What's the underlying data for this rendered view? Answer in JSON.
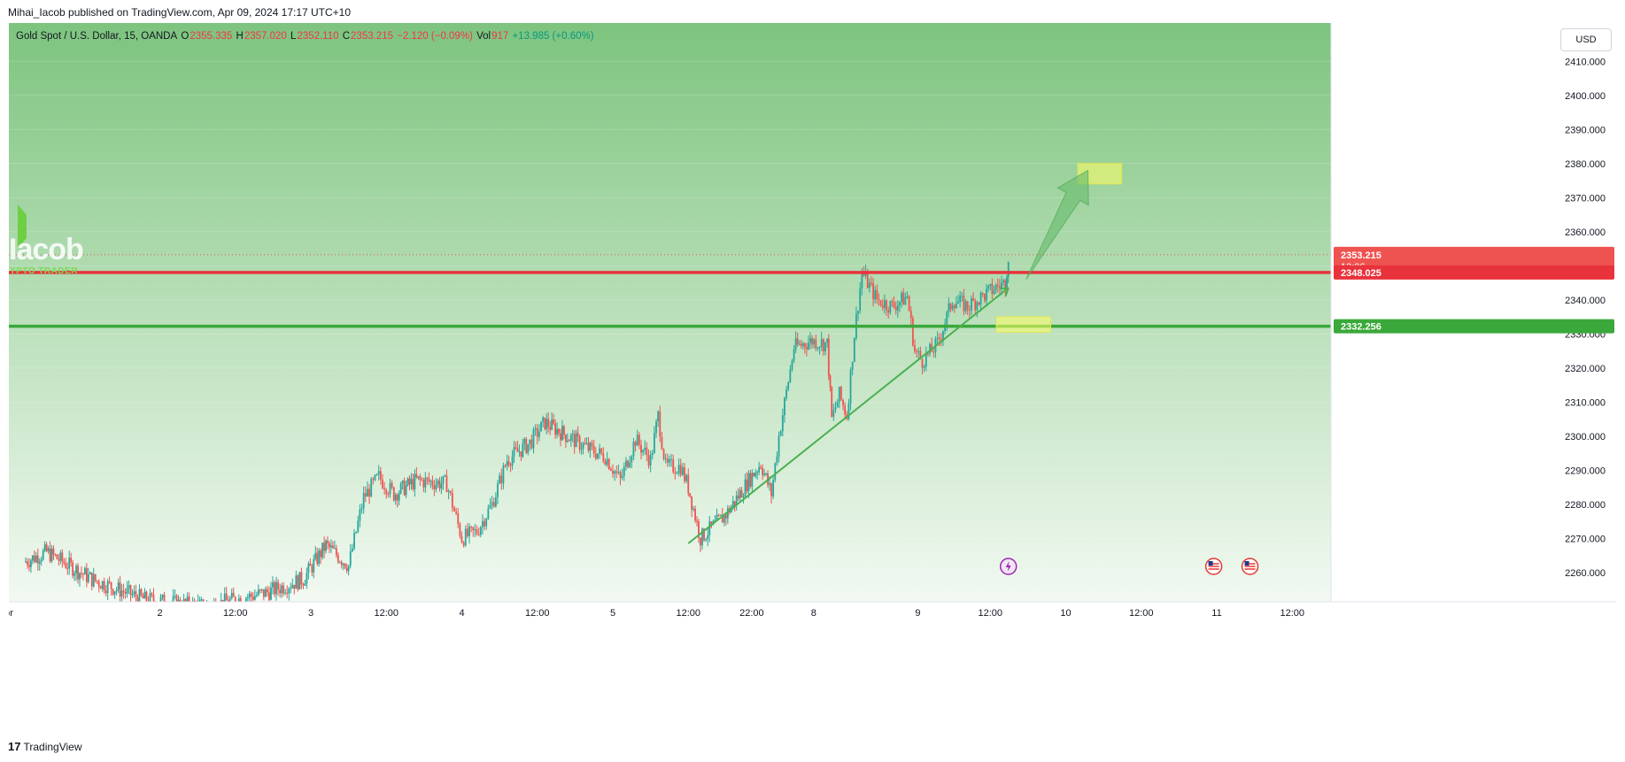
{
  "header": {
    "published": "Mihai_Iacob published on TradingView.com, Apr 09, 2024 17:17 UTC+10"
  },
  "ohlc": {
    "symbol": "Gold Spot / U.S. Dollar, 15, OANDA",
    "o_label": "O",
    "o": "2355.335",
    "h_label": "H",
    "h": "2357.020",
    "l_label": "L",
    "l": "2352.110",
    "c_label": "C",
    "c": "2353.215",
    "change": "−2.120 (−0.09%)",
    "vol_label": "Vol",
    "vol": "917",
    "vol_change": "+13.985 (+0.60%)"
  },
  "currency_button": "USD",
  "watermark": {
    "name": "Iacob",
    "subtitle": "YPTO TRADER"
  },
  "footer": {
    "brand": "TradingView"
  },
  "colors": {
    "up": "#26a69a",
    "down": "#ef5350",
    "resistance": "#e8323c",
    "support": "#3aa83a",
    "trendline": "#4caf50",
    "box": "#ffff66"
  },
  "chart_data": {
    "type": "candlestick",
    "symbol": "XAUUSD",
    "interval": "15",
    "ylim": [
      2255,
      2415
    ],
    "y_ticks": [
      2260,
      2270,
      2280,
      2290,
      2300,
      2310,
      2320,
      2330,
      2340,
      2350,
      2360,
      2370,
      2380,
      2390,
      2400,
      2410
    ],
    "x_ticks": [
      {
        "label": "pr",
        "pos": 0.0
      },
      {
        "label": "2",
        "pos": 1.0
      },
      {
        "label": "12:00",
        "pos": 1.5
      },
      {
        "label": "3",
        "pos": 2.0
      },
      {
        "label": "12:00",
        "pos": 2.5
      },
      {
        "label": "4",
        "pos": 3.0
      },
      {
        "label": "12:00",
        "pos": 3.5
      },
      {
        "label": "5",
        "pos": 4.0
      },
      {
        "label": "12:00",
        "pos": 4.5
      },
      {
        "label": "22:00",
        "pos": 4.92
      },
      {
        "label": "8",
        "pos": 5.33
      },
      {
        "label": "9",
        "pos": 6.02
      },
      {
        "label": "12:00",
        "pos": 6.5
      },
      {
        "label": "10",
        "pos": 7.0
      },
      {
        "label": "12:00",
        "pos": 7.5
      },
      {
        "label": "11",
        "pos": 8.0
      },
      {
        "label": "12:00",
        "pos": 8.5
      }
    ],
    "price_path": [
      [
        0.1,
        2263
      ],
      [
        0.25,
        2266
      ],
      [
        0.4,
        2262
      ],
      [
        0.55,
        2258
      ],
      [
        0.9,
        2252
      ],
      [
        1.3,
        2250
      ],
      [
        1.7,
        2254
      ],
      [
        1.95,
        2258
      ],
      [
        2.1,
        2268
      ],
      [
        2.25,
        2262
      ],
      [
        2.35,
        2282
      ],
      [
        2.45,
        2288
      ],
      [
        2.55,
        2283
      ],
      [
        2.7,
        2287
      ],
      [
        2.9,
        2286
      ],
      [
        3.0,
        2270
      ],
      [
        3.1,
        2272
      ],
      [
        3.2,
        2280
      ],
      [
        3.3,
        2293
      ],
      [
        3.45,
        2298
      ],
      [
        3.55,
        2304
      ],
      [
        3.7,
        2300
      ],
      [
        3.85,
        2296
      ],
      [
        3.95,
        2294
      ],
      [
        4.05,
        2287
      ],
      [
        4.15,
        2299
      ],
      [
        4.25,
        2293
      ],
      [
        4.3,
        2306
      ],
      [
        4.35,
        2291
      ],
      [
        4.45,
        2291
      ],
      [
        4.5,
        2285
      ],
      [
        4.58,
        2270
      ],
      [
        4.75,
        2277
      ],
      [
        4.9,
        2287
      ],
      [
        4.98,
        2292
      ],
      [
        5.05,
        2283
      ],
      [
        5.1,
        2300
      ],
      [
        5.2,
        2326
      ],
      [
        5.32,
        2328
      ],
      [
        5.42,
        2327
      ],
      [
        5.45,
        2305
      ],
      [
        5.5,
        2312
      ],
      [
        5.55,
        2306
      ],
      [
        5.6,
        2330
      ],
      [
        5.65,
        2348
      ],
      [
        5.75,
        2340
      ],
      [
        5.85,
        2338
      ],
      [
        5.95,
        2341
      ],
      [
        6.0,
        2325
      ],
      [
        6.05,
        2322
      ],
      [
        6.15,
        2327
      ],
      [
        6.25,
        2340
      ],
      [
        6.35,
        2338
      ],
      [
        6.45,
        2341
      ],
      [
        6.55,
        2344
      ],
      [
        6.6,
        2345
      ],
      [
        6.62,
        2353
      ]
    ],
    "last_price": 2353.215,
    "countdown": "12:06",
    "levels": [
      {
        "name": "resistance",
        "value": 2348.025,
        "label": "2348.025"
      },
      {
        "name": "support",
        "value": 2332.256,
        "label": "2332.256"
      }
    ],
    "last_label": "2353.215",
    "trendline": {
      "from": [
        4.5,
        2268.5
      ],
      "to": [
        6.62,
        2343.5
      ]
    },
    "arrow": {
      "from": [
        6.62,
        2346
      ],
      "to": [
        7.1,
        2378
      ]
    },
    "target_box": {
      "x": [
        7.08,
        7.37
      ],
      "y": [
        2374,
        2380
      ]
    },
    "entry_box": {
      "x": [
        6.54,
        6.9
      ],
      "y": [
        2330.5,
        2335
      ]
    },
    "event_markers": [
      {
        "name": "flash-event",
        "x": 6.62
      },
      {
        "name": "us-flag",
        "x": 7.98
      },
      {
        "name": "us-flag",
        "x": 8.22
      },
      {
        "name": "us-flag",
        "x": 8.97
      }
    ]
  }
}
